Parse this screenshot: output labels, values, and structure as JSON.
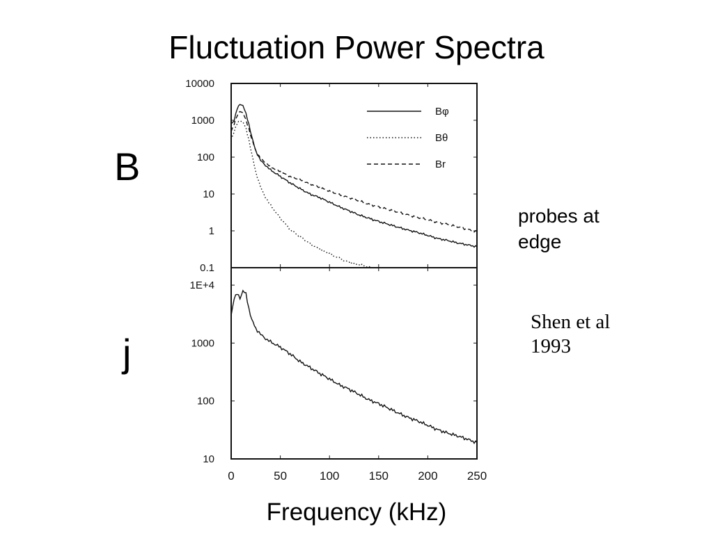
{
  "title": "Fluctuation Power Spectra",
  "panel_labels": {
    "top": "B",
    "bottom": "j"
  },
  "note": {
    "line1": "probes at",
    "line2": "edge"
  },
  "citation": {
    "line1": "Shen et al",
    "line2": "1993"
  },
  "x_axis_title": "Frequency (kHz)",
  "chart_data": [
    {
      "type": "line",
      "panel": "B",
      "y_scale": "log",
      "xlim": [
        0,
        250
      ],
      "ylim": [
        0.1,
        10000
      ],
      "x_ticks": [
        "0",
        "50",
        "100",
        "150",
        "200",
        "250"
      ],
      "y_ticks": [
        "10000",
        "1000",
        "100",
        "10",
        "1",
        "0.1"
      ],
      "legend": {
        "placement": "top-right",
        "labels": [
          "Bφ",
          "Bθ",
          "Br"
        ]
      },
      "series": [
        {
          "name": "Bφ",
          "style": "solid",
          "x": [
            0,
            3,
            6,
            9,
            12,
            15,
            18,
            21,
            25,
            30,
            35,
            40,
            50,
            60,
            70,
            80,
            90,
            100,
            110,
            120,
            130,
            140,
            150,
            160,
            170,
            180,
            190,
            200,
            210,
            220,
            230,
            240,
            250
          ],
          "y": [
            800,
            1000,
            2000,
            2800,
            2500,
            1500,
            800,
            350,
            150,
            80,
            60,
            45,
            30,
            20,
            14,
            10,
            8,
            6,
            4.5,
            3.5,
            2.7,
            2.2,
            1.8,
            1.5,
            1.25,
            1.05,
            0.9,
            0.75,
            0.62,
            0.55,
            0.47,
            0.42,
            0.37
          ]
        },
        {
          "name": "Bθ",
          "style": "dotted",
          "x": [
            0,
            3,
            6,
            9,
            12,
            15,
            18,
            21,
            25,
            30,
            35,
            40,
            50,
            60,
            70,
            80,
            90,
            100,
            110,
            120,
            130,
            140,
            150
          ],
          "y": [
            300,
            500,
            800,
            1000,
            900,
            600,
            300,
            120,
            40,
            15,
            8,
            5,
            2.2,
            1.1,
            0.7,
            0.45,
            0.32,
            0.24,
            0.18,
            0.14,
            0.12,
            0.105,
            0.095
          ]
        },
        {
          "name": "Br",
          "style": "dashed",
          "x": [
            0,
            3,
            6,
            9,
            12,
            15,
            18,
            21,
            25,
            30,
            35,
            40,
            50,
            60,
            70,
            80,
            90,
            100,
            110,
            120,
            130,
            140,
            150,
            160,
            170,
            180,
            190,
            200,
            210,
            220,
            230,
            240,
            250
          ],
          "y": [
            500,
            800,
            1300,
            1800,
            1600,
            1000,
            600,
            300,
            150,
            90,
            70,
            55,
            40,
            30,
            24,
            19,
            15,
            12,
            9.5,
            8,
            6.5,
            5.3,
            4.5,
            3.8,
            3.2,
            2.7,
            2.3,
            2,
            1.7,
            1.5,
            1.3,
            1.1,
            0.95
          ]
        }
      ]
    },
    {
      "type": "line",
      "panel": "j",
      "y_scale": "log",
      "xlim": [
        0,
        250
      ],
      "ylim": [
        10,
        20000
      ],
      "x_ticks": [
        "0",
        "50",
        "100",
        "150",
        "200",
        "250"
      ],
      "y_ticks": [
        "1E+4",
        "1000",
        "100",
        "10"
      ],
      "series": [
        {
          "style": "solid",
          "x": [
            0,
            3,
            6,
            9,
            12,
            15,
            18,
            21,
            25,
            30,
            35,
            40,
            50,
            60,
            70,
            80,
            90,
            100,
            110,
            120,
            130,
            140,
            150,
            160,
            170,
            180,
            190,
            200,
            210,
            220,
            230,
            240,
            250
          ],
          "y": [
            3000,
            6000,
            7000,
            6000,
            8000,
            7000,
            4000,
            2500,
            1800,
            1400,
            1200,
            1050,
            850,
            650,
            480,
            380,
            300,
            240,
            190,
            160,
            130,
            105,
            90,
            75,
            62,
            52,
            45,
            38,
            32,
            28,
            25,
            22,
            19
          ]
        }
      ]
    }
  ]
}
